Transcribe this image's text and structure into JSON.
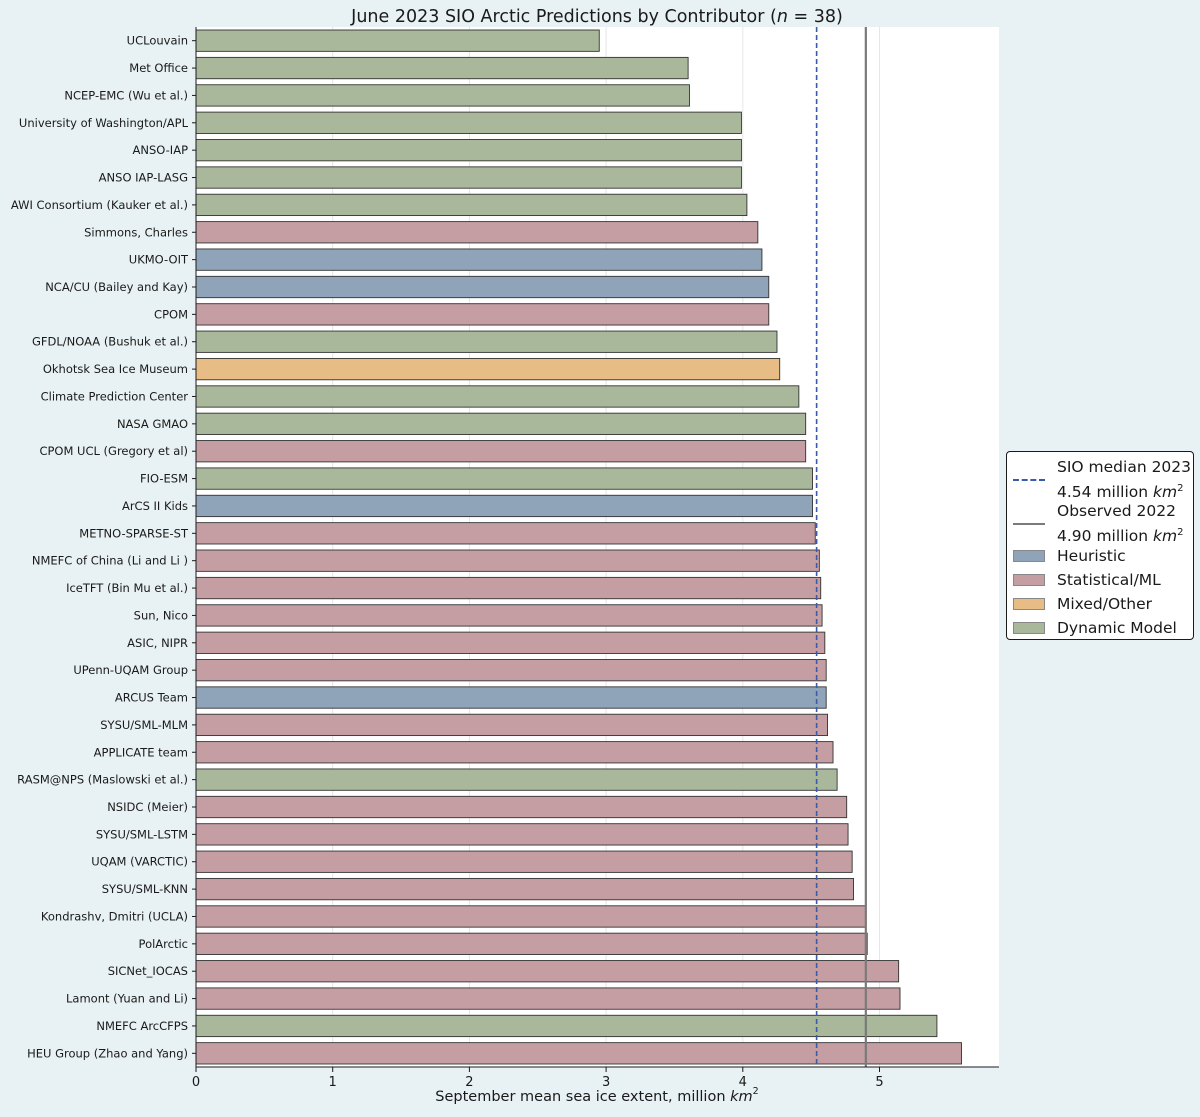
{
  "chart_data": {
    "type": "bar",
    "orientation": "horizontal",
    "title": "June 2023 SIO Arctic Predictions by Contributor",
    "title_n": "38",
    "xlabel": "September mean sea ice extent, million",
    "xlabel_unit": "km",
    "xlabel_exp": "2",
    "xlim": [
      0,
      5.9
    ],
    "xticks": [
      0,
      1,
      2,
      3,
      4,
      5
    ],
    "grid": "vertical",
    "legend_position": "right",
    "colors": {
      "Heuristic": "#8fa4b8",
      "Statistical/ML": "#c49ea2",
      "Mixed/Other": "#e8bd85",
      "Dynamic Model": "#a9b89a",
      "median_line": "#3b5ba8",
      "observed_line": "#7a7a7a"
    },
    "reference_lines": [
      {
        "name": "SIO median 2023",
        "label_value": "4.54 million",
        "value": 4.54,
        "style": "dashed"
      },
      {
        "name": "Observed 2022",
        "label_value": "4.90 million",
        "value": 4.9,
        "style": "solid"
      }
    ],
    "categories": [
      "UCLouvain",
      "Met Office",
      "NCEP-EMC (Wu et al.)",
      "University of Washington/APL",
      "ANSO-IAP",
      "ANSO IAP-LASG",
      "AWI Consortium (Kauker et al.)",
      "Simmons, Charles",
      "UKMO-OIT",
      "NCA/CU (Bailey and Kay)",
      "CPOM",
      "GFDL/NOAA (Bushuk et al.)",
      "Okhotsk Sea Ice Museum",
      "Climate Prediction Center",
      "NASA GMAO",
      "CPOM UCL (Gregory et al)",
      "FIO-ESM",
      "ArCS II Kids",
      "METNO-SPARSE-ST",
      "NMEFC of China (Li and Li )",
      "IceTFT (Bin Mu et al.)",
      "Sun, Nico ",
      "ASIC, NIPR",
      "UPenn-UQAM Group",
      "ARCUS Team",
      "SYSU/SML-MLM",
      "APPLICATE team",
      "RASM@NPS (Maslowski et al.)",
      "NSIDC (Meier)",
      "SYSU/SML-LSTM",
      "UQAM (VARCTIC)",
      "SYSU/SML-KNN",
      "Kondrashv, Dmitri (UCLA)",
      "PolArctic",
      "SICNet_IOCAS",
      "Lamont (Yuan and Li)",
      "NMEFC ArcCFPS",
      "HEU Group (Zhao and Yang)"
    ],
    "values": [
      2.95,
      3.6,
      3.61,
      3.99,
      3.99,
      3.99,
      4.03,
      4.11,
      4.14,
      4.19,
      4.19,
      4.25,
      4.27,
      4.41,
      4.46,
      4.46,
      4.51,
      4.51,
      4.53,
      4.56,
      4.57,
      4.58,
      4.6,
      4.61,
      4.61,
      4.62,
      4.66,
      4.69,
      4.76,
      4.77,
      4.8,
      4.81,
      4.9,
      4.91,
      5.14,
      5.15,
      5.42,
      5.6
    ],
    "method": [
      "Dynamic Model",
      "Dynamic Model",
      "Dynamic Model",
      "Dynamic Model",
      "Dynamic Model",
      "Dynamic Model",
      "Dynamic Model",
      "Statistical/ML",
      "Heuristic",
      "Heuristic",
      "Statistical/ML",
      "Dynamic Model",
      "Mixed/Other",
      "Dynamic Model",
      "Dynamic Model",
      "Statistical/ML",
      "Dynamic Model",
      "Heuristic",
      "Statistical/ML",
      "Statistical/ML",
      "Statistical/ML",
      "Statistical/ML",
      "Statistical/ML",
      "Statistical/ML",
      "Heuristic",
      "Statistical/ML",
      "Statistical/ML",
      "Dynamic Model",
      "Statistical/ML",
      "Statistical/ML",
      "Statistical/ML",
      "Statistical/ML",
      "Statistical/ML",
      "Statistical/ML",
      "Statistical/ML",
      "Statistical/ML",
      "Dynamic Model",
      "Statistical/ML"
    ],
    "legend": [
      "Heuristic",
      "Statistical/ML",
      "Mixed/Other",
      "Dynamic Model"
    ]
  }
}
